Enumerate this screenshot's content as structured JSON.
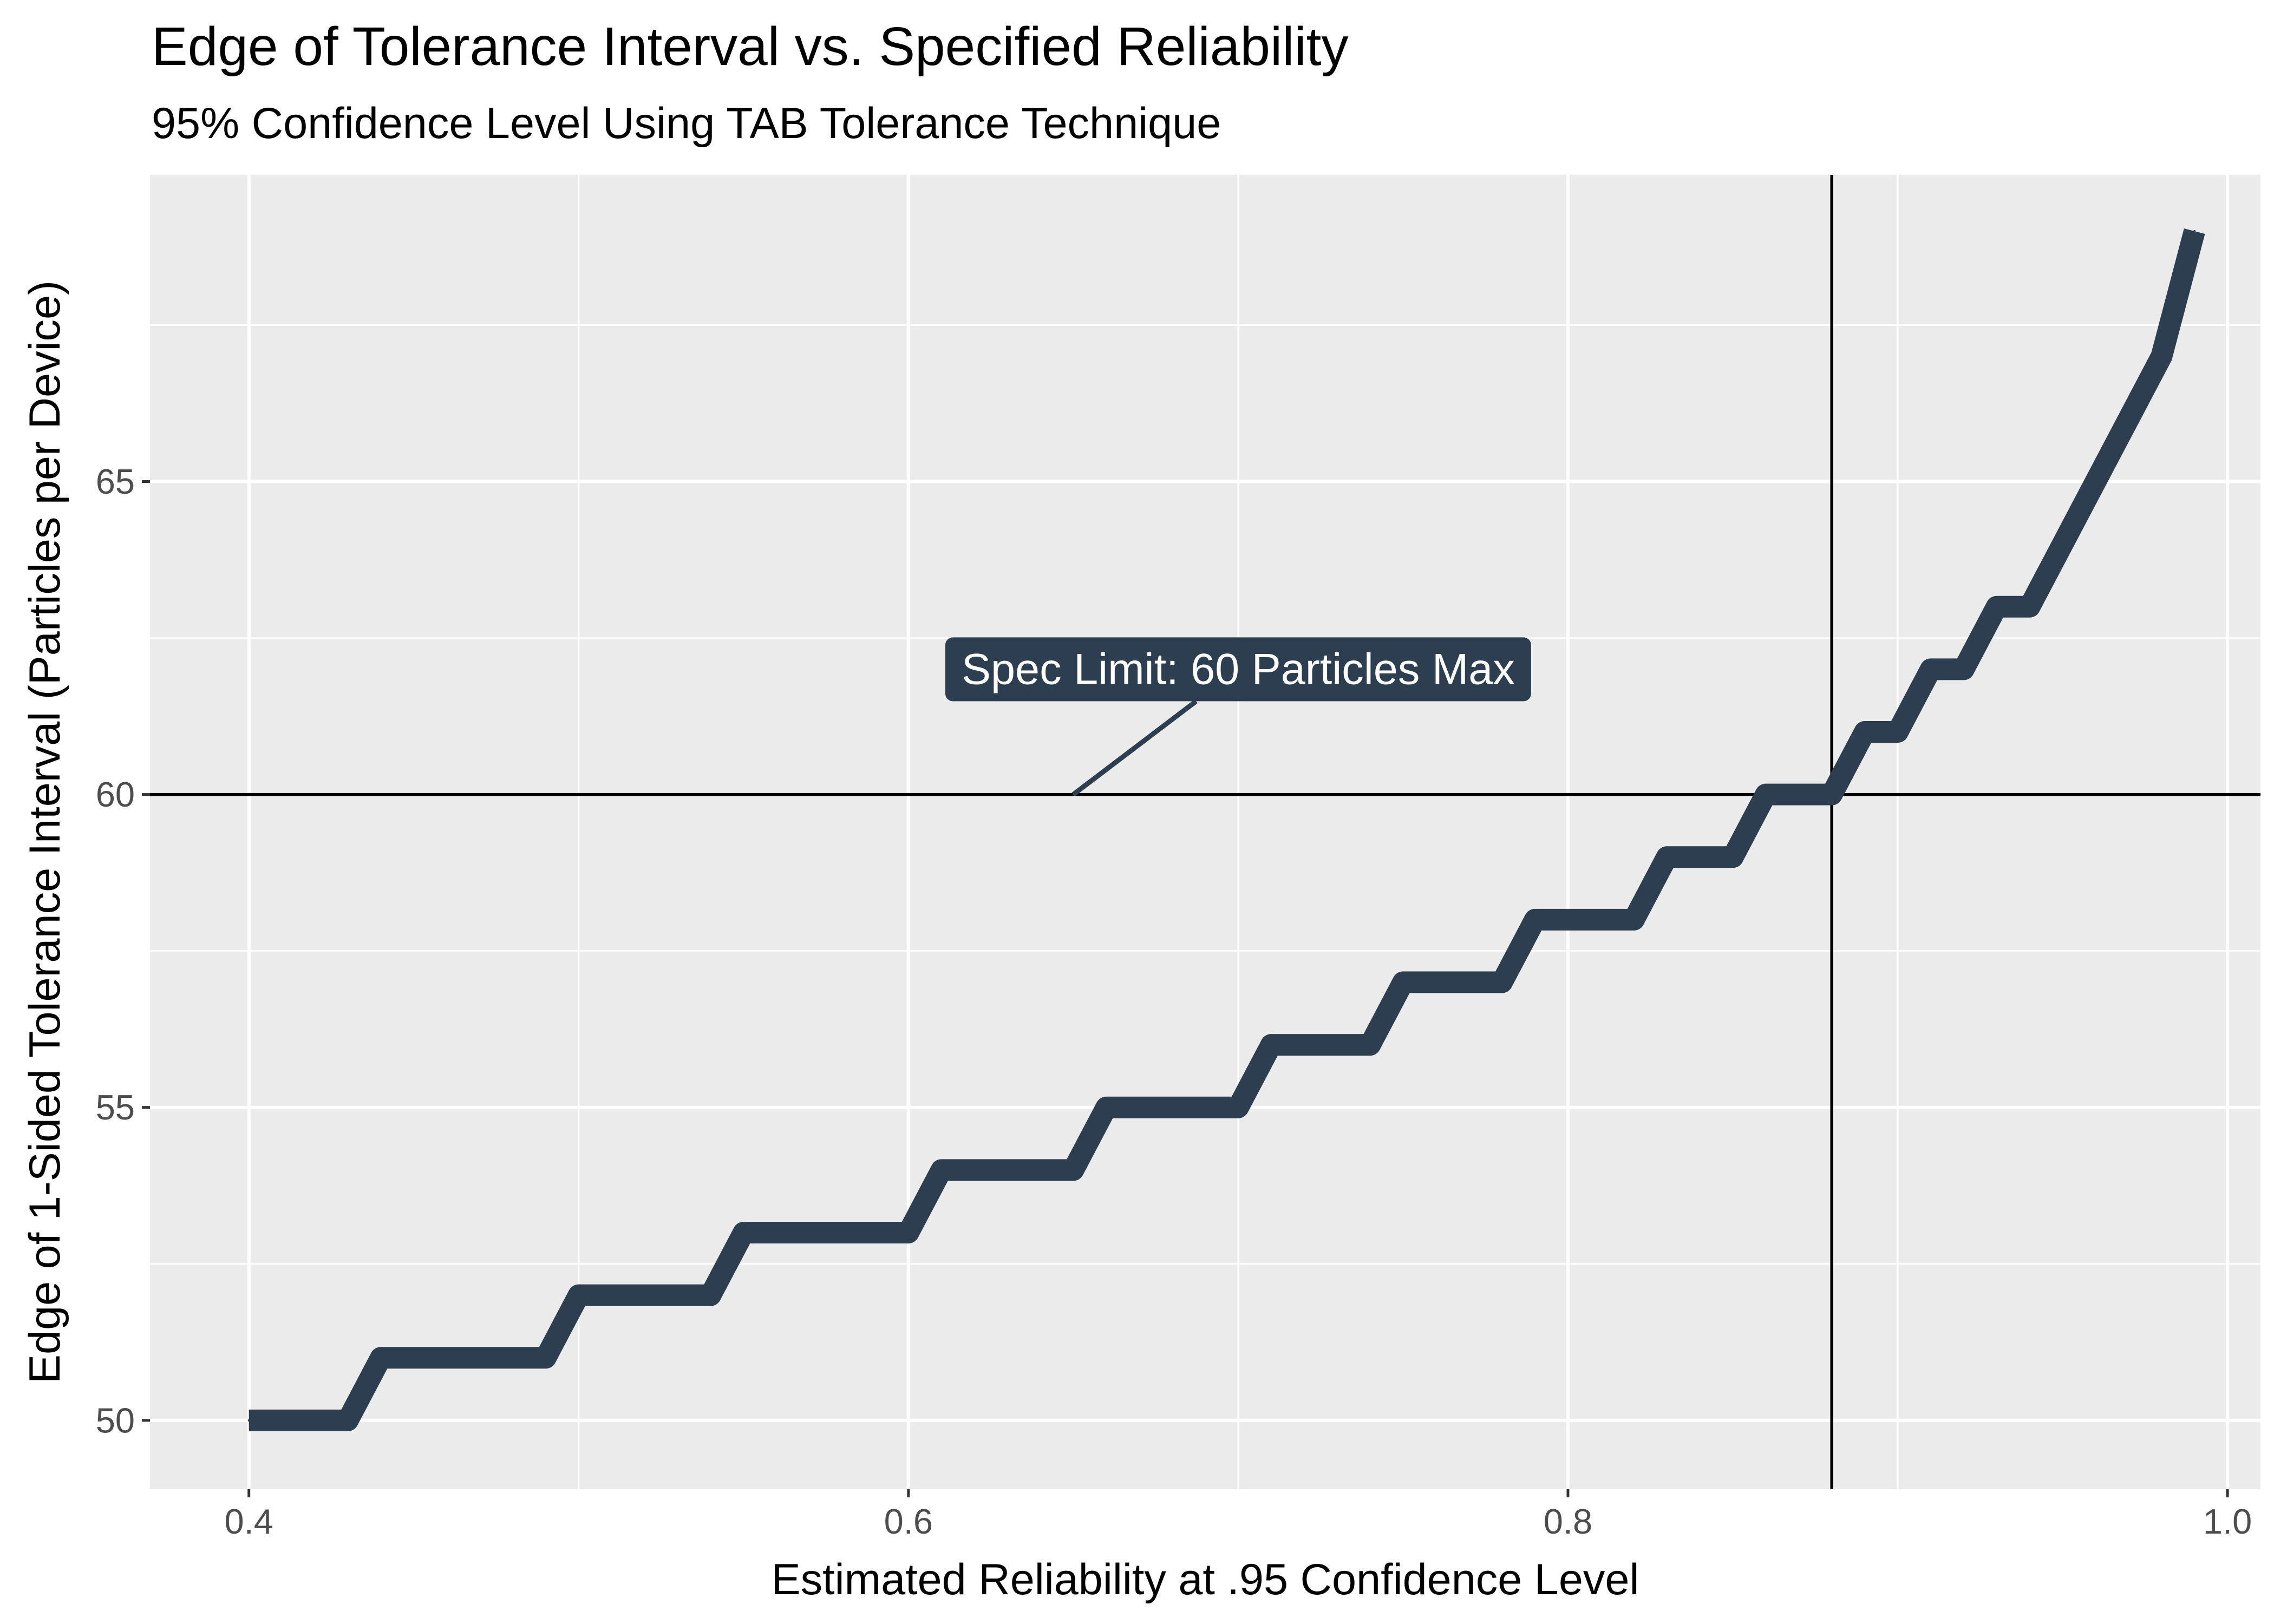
{
  "chart_data": {
    "type": "line",
    "title": "Edge of Tolerance Interval vs. Specified Reliability",
    "subtitle": "95% Confidence Level Using TAB Tolerance Technique",
    "xlabel": "Estimated Reliability at .95 Confidence Level",
    "ylabel": "Edge of 1-Sided Tolerance Interval (Particles per Device)",
    "xlim": [
      0.37,
      1.01
    ],
    "ylim": [
      48.9,
      69.9
    ],
    "x_ticks": [
      0.4,
      0.6,
      0.8,
      1.0
    ],
    "x_tick_labels": [
      "0.4",
      "0.6",
      "0.8",
      "1.0"
    ],
    "y_ticks": [
      50,
      55,
      60,
      65
    ],
    "y_tick_labels": [
      "50",
      "55",
      "60",
      "65"
    ],
    "grid": true,
    "background": "#ebebeb",
    "line_color": "#2c3e50",
    "series": [
      {
        "x": [
          0.4,
          0.41,
          0.42,
          0.43,
          0.44,
          0.45,
          0.46,
          0.47,
          0.48,
          0.49,
          0.5,
          0.51,
          0.52,
          0.53,
          0.54,
          0.55,
          0.56,
          0.57,
          0.58,
          0.59,
          0.6,
          0.61,
          0.62,
          0.63,
          0.64,
          0.65,
          0.66,
          0.67,
          0.68,
          0.69,
          0.7,
          0.71,
          0.72,
          0.73,
          0.74,
          0.75,
          0.76,
          0.77,
          0.78,
          0.79,
          0.8,
          0.81,
          0.82,
          0.83,
          0.84,
          0.85,
          0.86,
          0.87,
          0.88,
          0.89,
          0.9,
          0.91,
          0.92,
          0.93,
          0.94,
          0.95,
          0.96,
          0.97,
          0.98,
          0.99
        ],
        "values": [
          50,
          50,
          50,
          50,
          51,
          51,
          51,
          51,
          51,
          51,
          52,
          52,
          52,
          52,
          52,
          53,
          53,
          53,
          53,
          53,
          53,
          54,
          54,
          54,
          54,
          54,
          55,
          55,
          55,
          55,
          55,
          56,
          56,
          56,
          56,
          57,
          57,
          57,
          57,
          58,
          58,
          58,
          58,
          59,
          59,
          59,
          60,
          60,
          60,
          61,
          61,
          62,
          62,
          63,
          63,
          64,
          65,
          66,
          67,
          69
        ]
      }
    ],
    "reference_lines": {
      "horizontal_y": 60,
      "vertical_x": 0.88
    },
    "annotation": {
      "text": "Spec Limit: 60 Particles Max",
      "label_x": 0.7,
      "label_y": 62,
      "point_x": 0.65,
      "point_y": 60
    }
  }
}
